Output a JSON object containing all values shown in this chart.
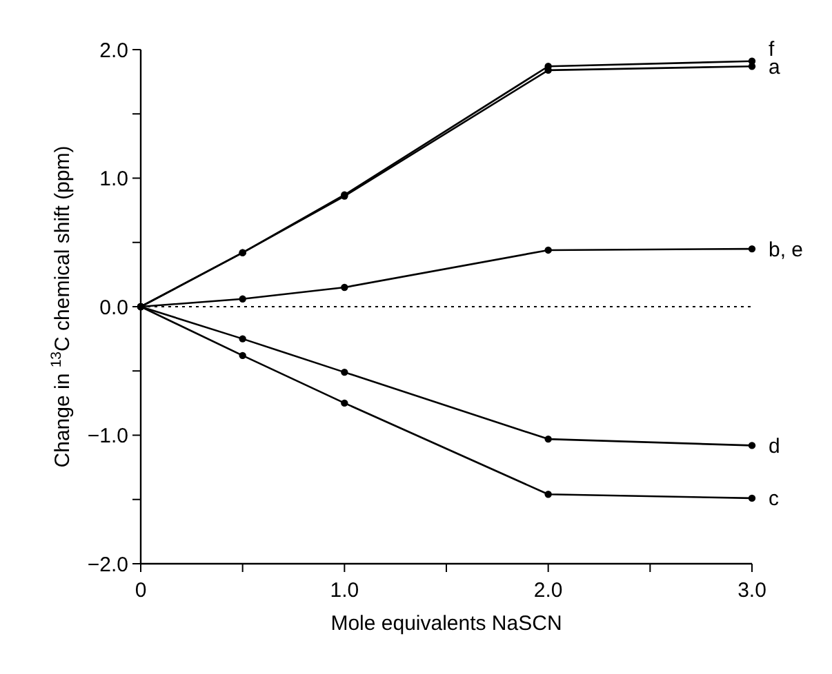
{
  "chart_data": {
    "type": "line",
    "xlabel": "Mole equivalents NaSCN",
    "ylabel": "Change in $^{13}$C chemical shift (ppm)",
    "x": [
      0,
      0.5,
      1,
      2,
      3
    ],
    "xlim": [
      0,
      3
    ],
    "xticks": [
      0,
      {
        "value": 0.5,
        "label": null
      },
      {
        "value": 1,
        "label": "1.0"
      },
      {
        "value": 1.5,
        "label": null
      },
      {
        "value": 2,
        "label": "2.0"
      },
      {
        "value": 2.5,
        "label": null
      },
      {
        "value": 3,
        "label": "3.0"
      }
    ],
    "ylim": [
      -2,
      2
    ],
    "yticks": [
      {
        "value": -2,
        "label": "−2.0"
      },
      {
        "value": -1.5,
        "label": null
      },
      {
        "value": -1,
        "label": "−1.0"
      },
      {
        "value": -0.5,
        "label": null
      },
      {
        "value": 0,
        "label": "0.0"
      },
      {
        "value": 0.5,
        "label": null
      },
      {
        "value": 1,
        "label": "1.0"
      },
      {
        "value": 1.5,
        "label": null
      },
      {
        "value": 2,
        "label": "2.0"
      }
    ],
    "series": [
      {
        "name": "f",
        "color": "#000000",
        "values": [
          0,
          0.42,
          0.87,
          1.87,
          1.91
        ]
      },
      {
        "name": "a",
        "color": "#000000",
        "values": [
          0,
          0.42,
          0.86,
          1.84,
          1.87
        ]
      },
      {
        "name": "b, e",
        "color": "#000000",
        "values": [
          0,
          0.06,
          0.15,
          0.44,
          0.45
        ]
      },
      {
        "name": "d",
        "color": "#000000",
        "values": [
          0,
          -0.25,
          -0.51,
          -1.03,
          -1.08
        ]
      },
      {
        "name": "c",
        "color": "#000000",
        "values": [
          0,
          -0.38,
          -0.75,
          -1.46,
          -1.49
        ]
      }
    ],
    "ref_lines": [
      {
        "axis": "y",
        "value": 0,
        "line_style": "dotted",
        "color": "#000000"
      }
    ],
    "marker": "circle",
    "line_style": "solid"
  }
}
